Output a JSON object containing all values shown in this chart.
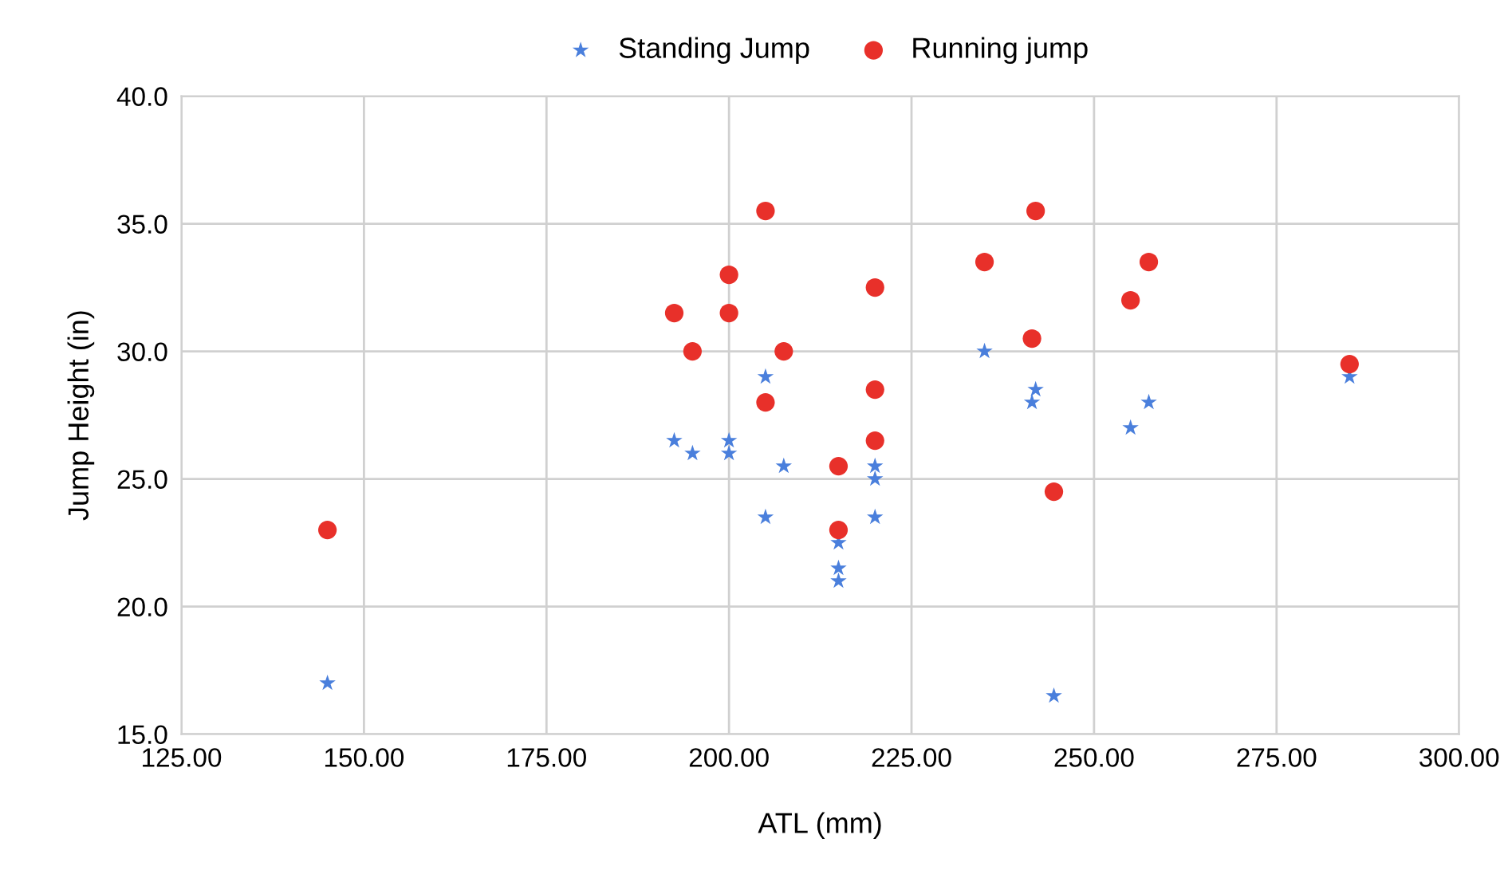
{
  "chart_data": {
    "type": "scatter",
    "xlabel": "ATL (mm)",
    "ylabel": "Jump Height (in)",
    "xlim": [
      125,
      300
    ],
    "ylim": [
      15,
      40
    ],
    "xticks": [
      {
        "value": 125,
        "label": "125.00"
      },
      {
        "value": 150,
        "label": "150.00"
      },
      {
        "value": 175,
        "label": "175.00"
      },
      {
        "value": 200,
        "label": "200.00"
      },
      {
        "value": 225,
        "label": "225.00"
      },
      {
        "value": 250,
        "label": "250.00"
      },
      {
        "value": 275,
        "label": "275.00"
      },
      {
        "value": 300,
        "label": "300.00"
      }
    ],
    "yticks": [
      {
        "value": 15,
        "label": "15.0"
      },
      {
        "value": 20,
        "label": "20.0"
      },
      {
        "value": 25,
        "label": "25.0"
      },
      {
        "value": 30,
        "label": "30.0"
      },
      {
        "value": 35,
        "label": "35.0"
      },
      {
        "value": 40,
        "label": "40.0"
      }
    ],
    "grid": true,
    "legend": "top",
    "series": [
      {
        "name": "Standing Jump",
        "color": "#4a7fdc",
        "marker": "star",
        "x": [
          145,
          192.5,
          195,
          200,
          200,
          205,
          205,
          207.5,
          215,
          215,
          215,
          220,
          220,
          220,
          235,
          242,
          241.5,
          244.5,
          255,
          257.5,
          285
        ],
        "values": [
          17,
          26.5,
          26,
          26.5,
          26,
          29,
          23.5,
          25.5,
          22.5,
          21.5,
          21,
          25.5,
          25,
          23.5,
          30,
          28.5,
          28,
          16.5,
          27,
          28,
          29
        ]
      },
      {
        "name": "Running jump",
        "color": "#e8302a",
        "marker": "circle",
        "x": [
          145,
          192.5,
          195,
          200,
          200,
          205,
          205,
          207.5,
          215,
          215,
          220,
          220,
          220,
          235,
          242,
          241.5,
          244.5,
          255,
          257.5,
          285
        ],
        "values": [
          23,
          31.5,
          30,
          33,
          31.5,
          35.5,
          28,
          30,
          25.5,
          23,
          32.5,
          28.5,
          26.5,
          33.5,
          35.5,
          30.5,
          24.5,
          32,
          33.5,
          29.5
        ]
      }
    ]
  }
}
